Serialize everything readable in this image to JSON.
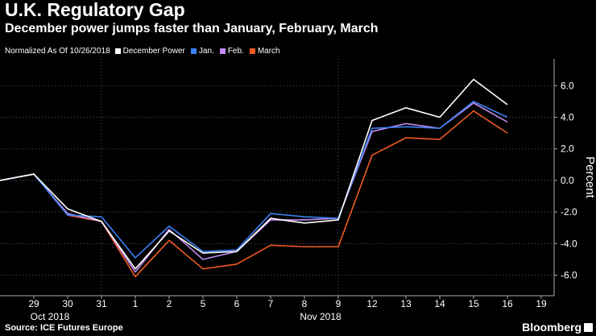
{
  "header": {
    "title": "U.K. Regulatory Gap",
    "subtitle": "December power jumps faster than January, February, March"
  },
  "legend": {
    "note": "Normalized As Of 10/26/2018",
    "items": [
      {
        "label": "December Power",
        "color": "#ffffff"
      },
      {
        "label": "Jan.",
        "color": "#3b82f6"
      },
      {
        "label": "Feb.",
        "color": "#c28cf0"
      },
      {
        "label": "March",
        "color": "#f05a23"
      }
    ]
  },
  "footer": {
    "source": "Source: ICE Futures Europe",
    "brand": "Bloomberg"
  },
  "chart_data": {
    "type": "line",
    "title": "U.K. Regulatory Gap",
    "subtitle": "December power jumps faster than January, February, March",
    "ylabel": "Percent",
    "ylim": [
      -7.3,
      7.7
    ],
    "y_ticks": [
      "6.0",
      "4.0",
      "2.0",
      "0.0",
      "-2.0",
      "-4.0",
      "-6.0"
    ],
    "y_tick_values": [
      6,
      4,
      2,
      0,
      -2,
      -4,
      -6
    ],
    "x_dates": [
      "10/26",
      "10/29",
      "10/30",
      "10/31",
      "11/1",
      "11/2",
      "11/5",
      "11/6",
      "11/7",
      "11/8",
      "11/9",
      "11/12",
      "11/13",
      "11/14",
      "11/15",
      "11/16"
    ],
    "x_tick_labels": [
      "29",
      "30",
      "31",
      "1",
      "2",
      "5",
      "6",
      "7",
      "8",
      "9",
      "12",
      "13",
      "14",
      "15",
      "16",
      "19"
    ],
    "month_labels": [
      "Oct 2018",
      "Nov 2018"
    ],
    "series": [
      {
        "name": "December Power",
        "color": "#ffffff",
        "values": [
          0.0,
          0.4,
          -1.8,
          -2.6,
          -5.6,
          -3.2,
          -4.6,
          -4.5,
          -2.4,
          -2.7,
          -2.5,
          3.8,
          4.6,
          4.0,
          6.4,
          4.8
        ]
      },
      {
        "name": "Jan.",
        "color": "#3b82f6",
        "values": [
          0.0,
          0.4,
          -2.2,
          -2.3,
          -4.9,
          -2.9,
          -4.5,
          -4.4,
          -2.1,
          -2.3,
          -2.4,
          3.3,
          3.4,
          3.3,
          5.0,
          4.0
        ]
      },
      {
        "name": "Feb.",
        "color": "#c28cf0",
        "values": [
          0.0,
          0.4,
          -2.1,
          -2.6,
          -5.8,
          -3.1,
          -5.0,
          -4.5,
          -2.5,
          -2.5,
          -2.4,
          3.1,
          3.6,
          3.3,
          4.9,
          3.7
        ]
      },
      {
        "name": "March",
        "color": "#f05a23",
        "values": [
          0.0,
          0.4,
          -2.2,
          -2.6,
          -6.1,
          -3.8,
          -5.6,
          -5.3,
          -4.1,
          -4.2,
          -4.2,
          1.6,
          2.7,
          2.6,
          4.4,
          3.0
        ]
      }
    ]
  }
}
